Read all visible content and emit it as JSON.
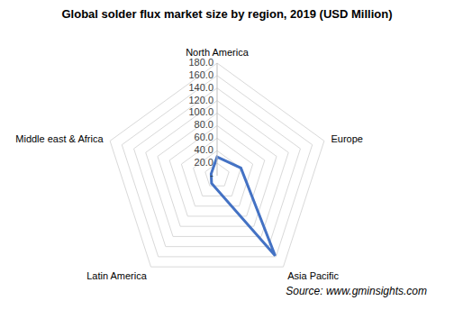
{
  "chart_data": {
    "type": "radar",
    "title": "Global solder flux market size by region, 2019 (USD Million)",
    "categories": [
      "North America",
      "Europe",
      "Asia Pacific",
      "Latin America",
      "Middle east & Africa"
    ],
    "values": [
      30,
      40,
      158,
      15,
      10
    ],
    "color": "#4472c4",
    "ylim": [
      0,
      180
    ],
    "yticks": [
      {
        "value": 0,
        "label": "-"
      },
      {
        "value": 20,
        "label": "20.0"
      },
      {
        "value": 40,
        "label": "40.0"
      },
      {
        "value": 60,
        "label": "60.0"
      },
      {
        "value": 80,
        "label": "80.0"
      },
      {
        "value": 100,
        "label": "100.0"
      },
      {
        "value": 120,
        "label": "120.0"
      },
      {
        "value": 140,
        "label": "140.0"
      },
      {
        "value": 160,
        "label": "160.0"
      },
      {
        "value": 180,
        "label": "180.0"
      }
    ],
    "grid": true,
    "annotations": [
      "Source: www.gminsights.com"
    ]
  }
}
